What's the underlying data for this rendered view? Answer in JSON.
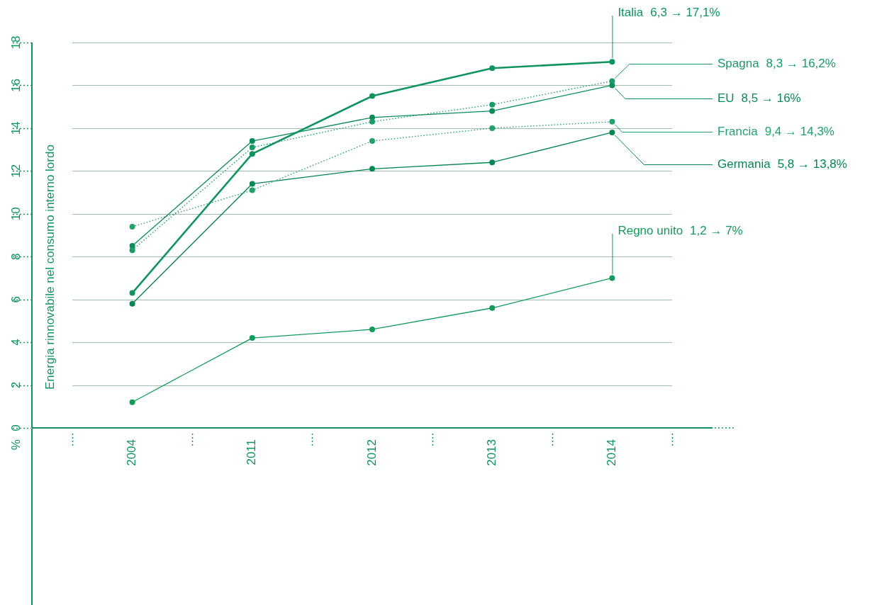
{
  "chart_data": {
    "type": "line",
    "ylabel": "Energia rinnovabile nel consumo interno lordo",
    "categories": [
      "2004",
      "2011",
      "2012",
      "2013",
      "2014"
    ],
    "ylim": [
      0,
      18
    ],
    "yticks": [
      0,
      2,
      4,
      6,
      8,
      10,
      12,
      14,
      16,
      18
    ],
    "grid": "y",
    "legend": false,
    "marker": "circle",
    "series": [
      {
        "name": "Italia",
        "color": "#0f9460",
        "line_style": "solid",
        "values": [
          6.3,
          12.8,
          15.5,
          16.8,
          17.1
        ]
      },
      {
        "name": "Spagna",
        "color": "#1a9a68",
        "line_style": "dotted",
        "values": [
          8.3,
          13.1,
          14.3,
          15.1,
          16.2
        ]
      },
      {
        "name": "EU",
        "color": "#0a8c5a",
        "line_style": "solid",
        "values": [
          8.5,
          13.4,
          14.5,
          14.8,
          16
        ]
      },
      {
        "name": "Francia",
        "color": "#22a06e",
        "line_style": "dotted",
        "values": [
          9.4,
          11.1,
          13.4,
          14,
          14.3
        ]
      },
      {
        "name": "Germania",
        "color": "#068654",
        "line_style": "solid",
        "values": [
          5.8,
          11.4,
          12.1,
          12.4,
          13.8
        ]
      },
      {
        "name": "Regno unito",
        "color": "#129b5c",
        "line_style": "solid",
        "values": [
          1.2,
          4.2,
          4.6,
          5.6,
          7
        ]
      }
    ],
    "annotations": [
      "6,3 → 17,1%",
      "8,3 → 16,2%",
      "8,5 → 16%",
      "9,4 → 14,3%",
      "5,8 → 13,8%",
      "1,2 → 7%",
      "%"
    ]
  }
}
